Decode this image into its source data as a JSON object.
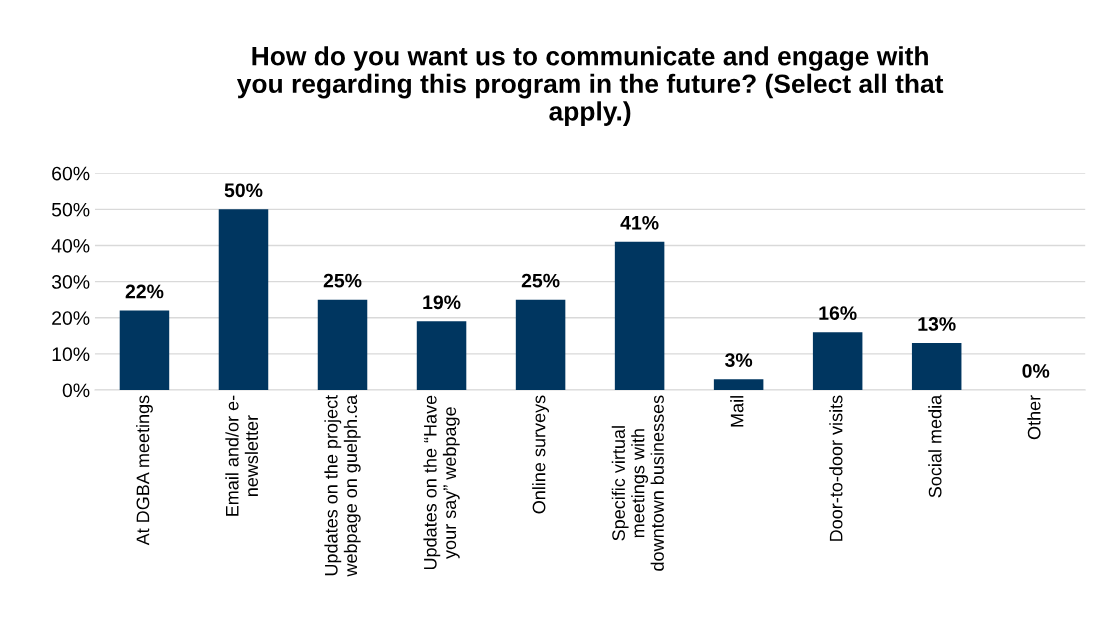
{
  "chart_data": {
    "type": "bar",
    "title": "How do you want us to communicate and engage with\nyou regarding this program in the future? (Select all that\napply.)",
    "categories": [
      "At DGBA meetings",
      "Email and/or e-\nnewsletter",
      "Updates on the project\nwebpage on guelph.ca",
      "Updates on the “Have\nyour say” webpage",
      "Online surveys",
      "Specific virtual\nmeetings with\ndowntown businesses",
      "Mail",
      "Door-to-door visits",
      "Social media",
      "Other"
    ],
    "values": [
      22,
      50,
      25,
      19,
      25,
      41,
      3,
      16,
      13,
      0
    ],
    "value_labels": [
      "22%",
      "50%",
      "25%",
      "19%",
      "25%",
      "41%",
      "3%",
      "16%",
      "13%",
      "0%"
    ],
    "color": "#003660",
    "ylim": [
      0,
      60
    ],
    "yticks": [
      {
        "value": 0,
        "label": "0%"
      },
      {
        "value": 10,
        "label": "10%"
      },
      {
        "value": 20,
        "label": "20%"
      },
      {
        "value": 30,
        "label": "30%"
      },
      {
        "value": 40,
        "label": "40%"
      },
      {
        "value": 50,
        "label": "50%"
      },
      {
        "value": 60,
        "label": "60%"
      }
    ],
    "grid": "y"
  }
}
